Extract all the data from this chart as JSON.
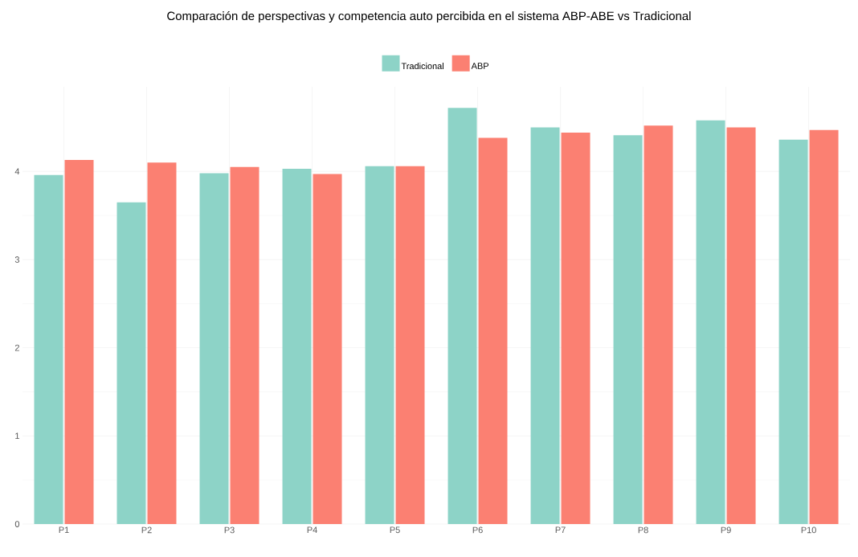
{
  "chart_data": {
    "type": "bar",
    "title": "Comparación de perspectivas y competencia auto percibida en el sistema ABP-ABE vs Tradicional",
    "categories": [
      "P1",
      "P2",
      "P3",
      "P4",
      "P5",
      "P6",
      "P7",
      "P8",
      "P9",
      "P10"
    ],
    "series": [
      {
        "name": "Tradicional",
        "color": "#8dd3c7",
        "values": [
          3.96,
          3.65,
          3.98,
          4.03,
          4.06,
          4.72,
          4.5,
          4.41,
          4.58,
          4.36
        ]
      },
      {
        "name": "ABP",
        "color": "#fb8072",
        "values": [
          4.13,
          4.1,
          4.05,
          3.97,
          4.06,
          4.38,
          4.44,
          4.52,
          4.5,
          4.47
        ]
      }
    ],
    "ylim": [
      0,
      4.96
    ],
    "yticks": [
      0,
      1,
      2,
      3,
      4
    ],
    "grid": true,
    "legend": "top"
  }
}
